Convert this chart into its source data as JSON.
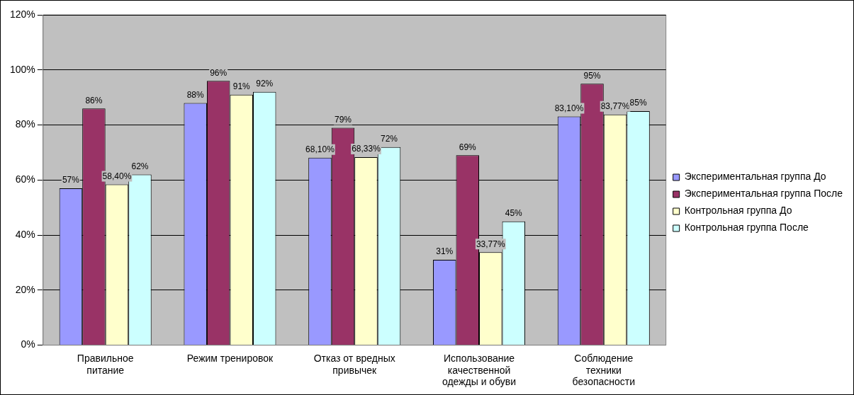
{
  "chart_data": {
    "type": "bar",
    "categories": [
      "Правильное питание",
      "Режим тренировок",
      "Отказ от вредных привычек",
      "Использование качественной одежды и обуви",
      "Соблюдение техники безопасности"
    ],
    "series": [
      {
        "name": "Экспериментальная группа До",
        "color": "#9999ff",
        "values": [
          57,
          88,
          68.1,
          31,
          83.1
        ],
        "value_labels": [
          "57%",
          "88%",
          "68,10%",
          "31%",
          "83,10%"
        ]
      },
      {
        "name": "Экспериментальная группа После",
        "color": "#993366",
        "values": [
          86,
          96,
          79,
          69,
          95
        ],
        "value_labels": [
          "86%",
          "96%",
          "79%",
          "69%",
          "95%"
        ]
      },
      {
        "name": "Контрольная группа До",
        "color": "#ffffcc",
        "values": [
          58.4,
          91,
          68.33,
          33.77,
          83.77
        ],
        "value_labels": [
          "58,40%",
          "91%",
          "68,33%",
          "33,77%",
          "83,77%"
        ]
      },
      {
        "name": "Контрольная группа После",
        "color": "#ccffff",
        "values": [
          62,
          92,
          72,
          45,
          85
        ],
        "value_labels": [
          "62%",
          "92%",
          "72%",
          "45%",
          "85%"
        ]
      }
    ],
    "ylim": [
      0,
      120
    ],
    "yticks": [
      {
        "value": 0,
        "label": "0%"
      },
      {
        "value": 20,
        "label": "20%"
      },
      {
        "value": 40,
        "label": "40%"
      },
      {
        "value": 60,
        "label": "60%"
      },
      {
        "value": 80,
        "label": "80%"
      },
      {
        "value": 100,
        "label": "100%"
      },
      {
        "value": 120,
        "label": "120%"
      }
    ],
    "grid": "y",
    "legend": "right"
  }
}
